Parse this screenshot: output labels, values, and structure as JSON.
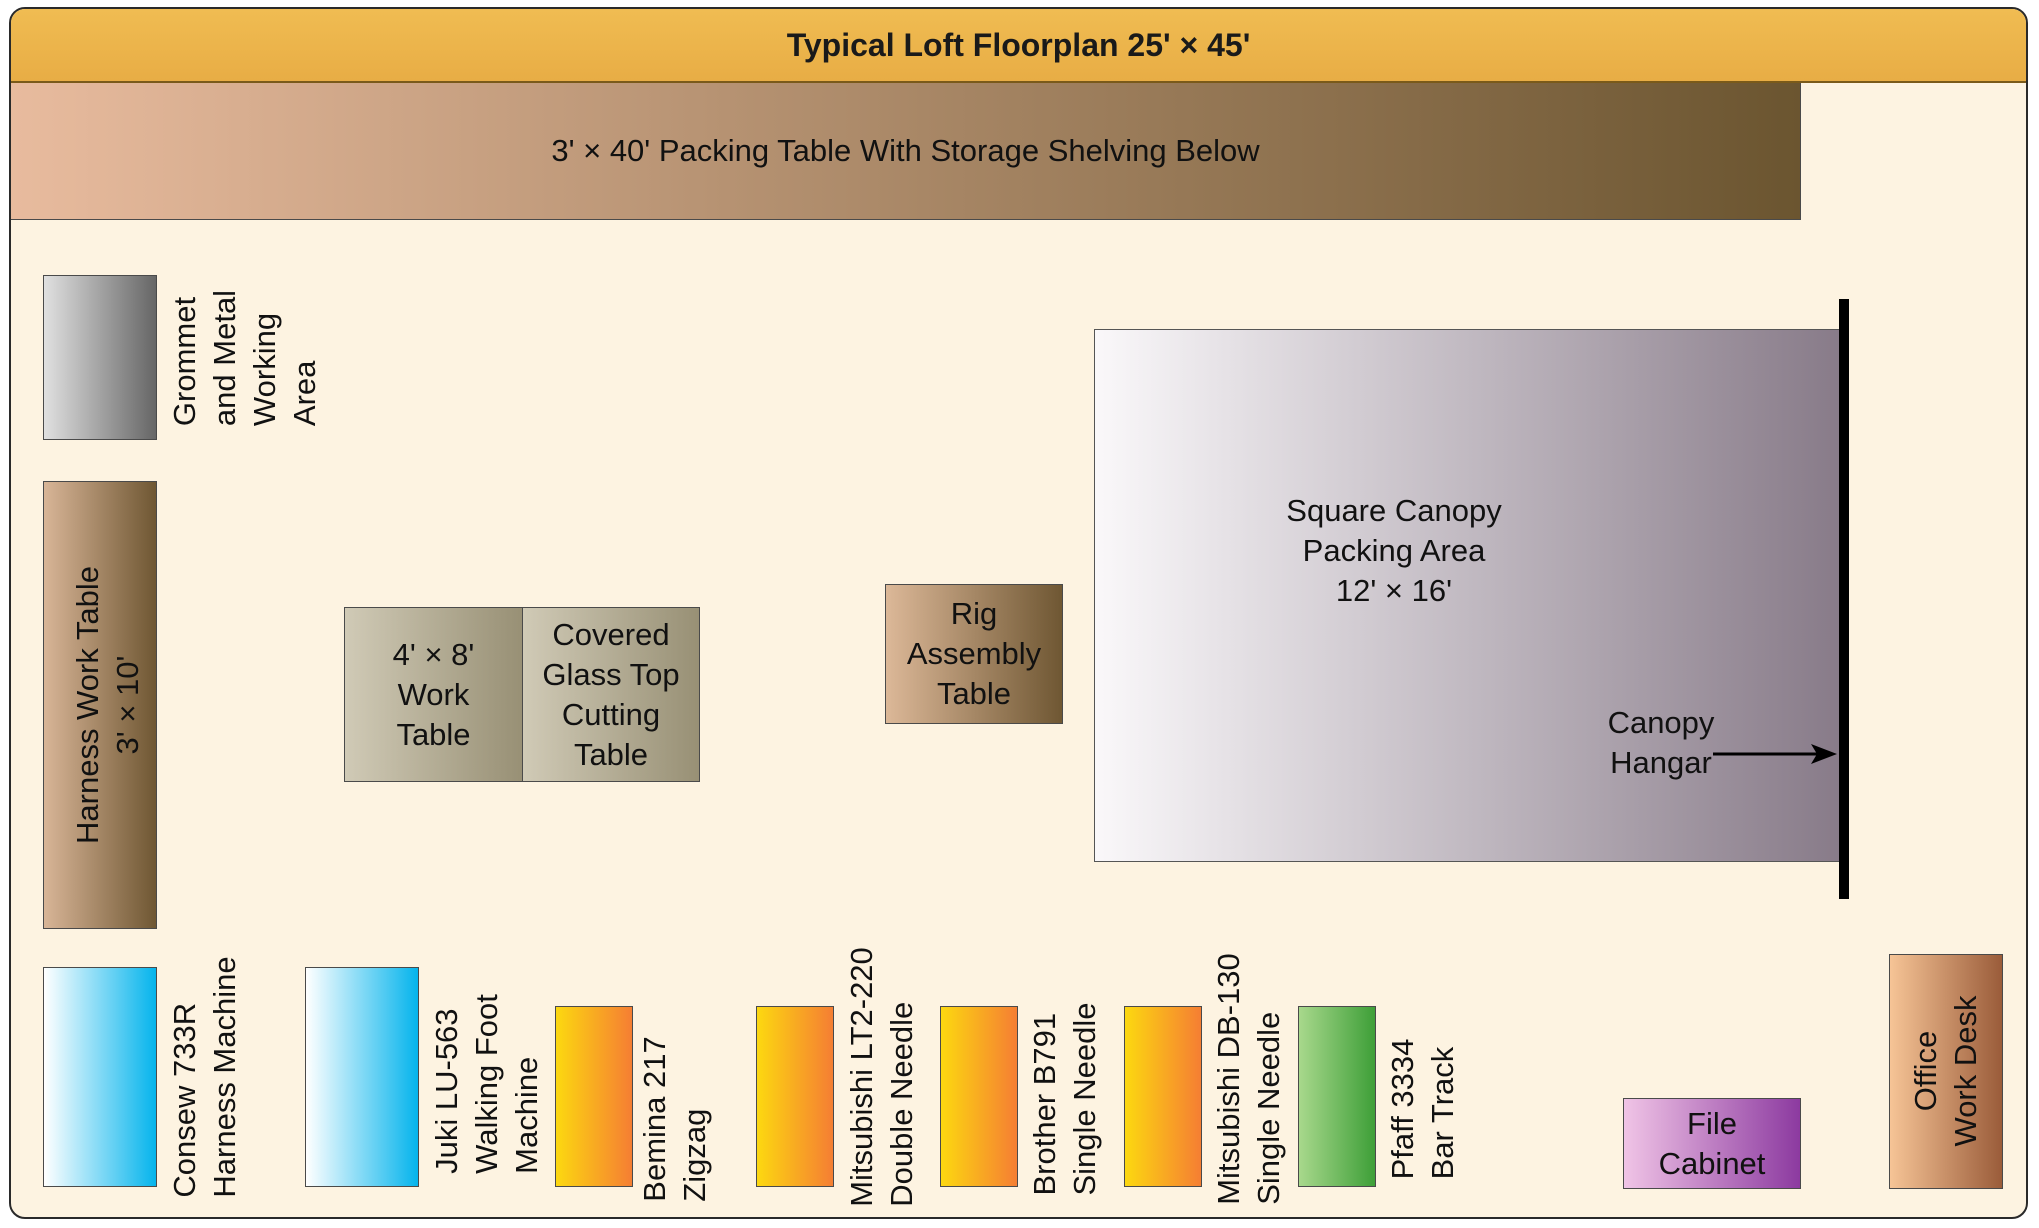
{
  "title": "Typical Loft Floorplan 25' × 45'",
  "items": {
    "packing_table": "3' × 40' Packing Table With Storage Shelving Below",
    "grommet": "Grommet\nand Metal\nWorking\nArea",
    "harness_table": "Harness Work Table\n3' × 10'",
    "work_table": "4' × 8'\nWork\nTable",
    "cutting_table": "Covered\nGlass Top\nCutting\nTable",
    "rig_table": "Rig\nAssembly\nTable",
    "canopy_area": "Square Canopy\nPacking Area\n12' × 16'",
    "canopy_hangar": "Canopy\nHangar",
    "consew": "Consew 733R\nHarness Machine",
    "juki": "Juki LU-563\nWalking Foot\nMachine",
    "bemina": "Bemina 217\nZigzag",
    "mitsubishi_lt2": "Mitsubishi LT2-220\nDouble Needle",
    "brother": "Brother B791\nSingle Needle",
    "mitsubishi_db": "Mitsubishi DB-130\nSingle Needle",
    "pfaff": "Pfaff 3334\nBar Track",
    "file_cabinet": "File\nCabinet",
    "office_desk": "Office\nWork Desk"
  },
  "colors": {
    "title_bar": "#ecb44b",
    "background": "#fdf3e1",
    "packing_table": [
      "#e8bb9e",
      "#6b5530"
    ],
    "grommet": [
      "#dcdcdc",
      "#6a6a6a"
    ],
    "wood": [
      "#d8b597",
      "#6f5733"
    ],
    "khaki": [
      "#ccc6b0",
      "#938b70"
    ],
    "canopy_area": [
      "#f8f6f8",
      "#877a88"
    ],
    "blue_machine": [
      "#ffffff",
      "#05b4ec"
    ],
    "orange_machine": [
      "#fcd810",
      "#f57e33"
    ],
    "green_machine": [
      "#a8d88c",
      "#3e9f38"
    ],
    "file_cabinet": [
      "#f0c4e6",
      "#8c3aa0"
    ],
    "office_desk": [
      "#f6c496",
      "#9a5c3a"
    ]
  }
}
